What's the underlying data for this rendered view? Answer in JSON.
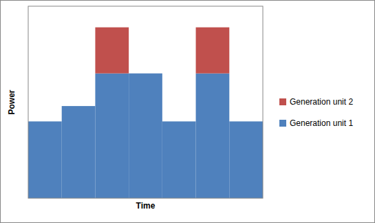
{
  "chart_data": {
    "type": "bar",
    "stacked": true,
    "x_label": "Time",
    "y_label": "Power",
    "categories": [
      null,
      null,
      null,
      null,
      null,
      null,
      null
    ],
    "series": [
      {
        "name": "Generation unit 1",
        "color": "#4f81bd",
        "values": [
          40,
          48,
          65,
          65,
          40,
          65,
          40
        ]
      },
      {
        "name": "Generation unit 2",
        "color": "#c0504d",
        "values": [
          0,
          0,
          24,
          0,
          0,
          24,
          0
        ]
      }
    ],
    "ylim": [
      0,
      100
    ],
    "grid": false,
    "legend": "right",
    "tick_labels": false
  }
}
